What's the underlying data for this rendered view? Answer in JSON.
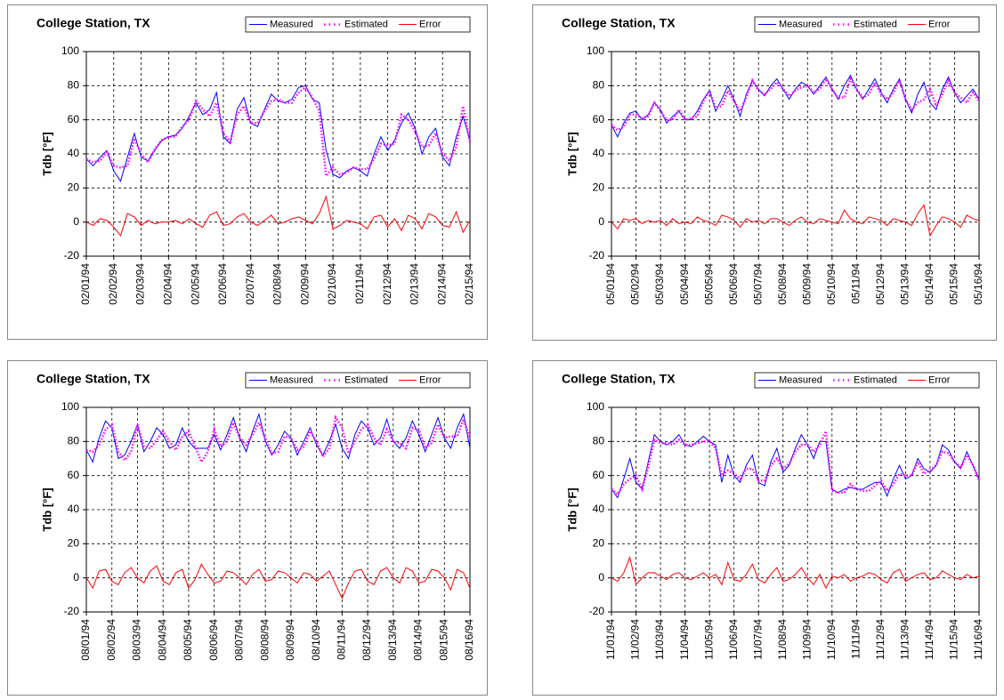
{
  "chart_data": [
    {
      "type": "line",
      "title": "College Station, TX",
      "y_label": "Tdb [°F]",
      "categories": [
        "02/01/94",
        null,
        null,
        null,
        "02/02/94",
        null,
        null,
        null,
        "02/03/94",
        null,
        null,
        null,
        "02/04/94",
        null,
        null,
        null,
        "02/05/94",
        null,
        null,
        null,
        "02/06/94",
        null,
        null,
        null,
        "02/07/94",
        null,
        null,
        null,
        "02/08/94",
        null,
        null,
        null,
        "02/09/94",
        null,
        null,
        null,
        "02/10/94",
        null,
        null,
        null,
        "02/11/94",
        null,
        null,
        null,
        "02/12/94",
        null,
        null,
        null,
        "02/13/94",
        null,
        null,
        null,
        "02/14/94",
        null,
        null,
        null,
        "02/15/94"
      ],
      "series": [
        {
          "name": "Measured",
          "color": "#0000ff",
          "values": [
            37,
            33,
            38,
            42,
            30,
            24,
            38,
            52,
            38,
            36,
            42,
            48,
            50,
            51,
            55,
            62,
            70,
            63,
            66,
            76,
            50,
            46,
            66,
            73,
            58,
            56,
            66,
            75,
            71,
            70,
            72,
            79,
            80,
            72,
            70,
            42,
            28,
            26,
            30,
            32,
            30,
            27,
            40,
            50,
            42,
            48,
            58,
            64,
            55,
            40,
            50,
            55,
            38,
            33,
            50,
            62,
            48
          ]
        },
        {
          "name": "Estimated",
          "color": "#ff00ff",
          "style": "dotted",
          "values": [
            37,
            35,
            36,
            41,
            33,
            32,
            33,
            49,
            40,
            35,
            43,
            48,
            50,
            50,
            56,
            60,
            71,
            66,
            62,
            70,
            52,
            47,
            63,
            68,
            58,
            58,
            65,
            71,
            72,
            70,
            70,
            76,
            79,
            73,
            65,
            27,
            32,
            28,
            29,
            32,
            31,
            31,
            37,
            46,
            45,
            46,
            63,
            60,
            53,
            44,
            45,
            52,
            40,
            36,
            44,
            68,
            47
          ]
        },
        {
          "name": "Error",
          "color": "#ff0000",
          "values": [
            0,
            -2,
            2,
            1,
            -3,
            -8,
            5,
            3,
            -2,
            1,
            -1,
            0,
            0,
            1,
            -1,
            2,
            -1,
            -3,
            4,
            6,
            -2,
            -1,
            3,
            5,
            0,
            -2,
            1,
            4,
            -1,
            0,
            2,
            3,
            1,
            -1,
            5,
            15,
            -4,
            -2,
            1,
            0,
            -1,
            -4,
            3,
            4,
            -3,
            2,
            -5,
            4,
            2,
            -4,
            5,
            3,
            -2,
            -3,
            6,
            -6,
            1
          ]
        }
      ],
      "ylim": [
        -20,
        100
      ],
      "yticks": [
        -20,
        0,
        20,
        40,
        60,
        80,
        100
      ],
      "grid": true,
      "legend_position": "upper right"
    },
    {
      "type": "line",
      "title": "College Station, TX",
      "y_label": "Tdb [°F]",
      "categories": [
        "05/01/94",
        null,
        null,
        null,
        "05/02/94",
        null,
        null,
        null,
        "05/03/94",
        null,
        null,
        null,
        "05/04/94",
        null,
        null,
        null,
        "05/05/94",
        null,
        null,
        null,
        "05/06/94",
        null,
        null,
        null,
        "05/07/94",
        null,
        null,
        null,
        "05/08/94",
        null,
        null,
        null,
        "05/09/94",
        null,
        null,
        null,
        "05/10/94",
        null,
        null,
        null,
        "05/11/94",
        null,
        null,
        null,
        "05/12/94",
        null,
        null,
        null,
        "05/13/94",
        null,
        null,
        null,
        "05/14/94",
        null,
        null,
        null,
        "05/15/94",
        null,
        null,
        null,
        "05/16/94"
      ],
      "series": [
        {
          "name": "Measured",
          "color": "#0000ff",
          "values": [
            57,
            50,
            58,
            64,
            65,
            60,
            63,
            70,
            66,
            58,
            62,
            65,
            60,
            60,
            65,
            72,
            77,
            65,
            72,
            80,
            72,
            62,
            75,
            83,
            78,
            74,
            80,
            84,
            78,
            72,
            78,
            82,
            80,
            75,
            80,
            85,
            78,
            72,
            80,
            86,
            78,
            72,
            78,
            84,
            76,
            70,
            78,
            84,
            72,
            64,
            75,
            82,
            70,
            66,
            78,
            85,
            76,
            70,
            74,
            78,
            72
          ]
        },
        {
          "name": "Estimated",
          "color": "#ff00ff",
          "style": "dotted",
          "values": [
            57,
            54,
            56,
            63,
            63,
            61,
            62,
            70,
            65,
            60,
            60,
            66,
            60,
            61,
            62,
            71,
            77,
            67,
            68,
            77,
            71,
            65,
            73,
            83,
            77,
            75,
            78,
            82,
            78,
            74,
            77,
            79,
            80,
            76,
            78,
            84,
            78,
            73,
            73,
            84,
            78,
            73,
            75,
            82,
            75,
            72,
            76,
            83,
            72,
            66,
            70,
            72,
            78,
            68,
            75,
            83,
            76,
            73,
            70,
            76,
            71
          ]
        },
        {
          "name": "Error",
          "color": "#ff0000",
          "values": [
            0,
            -4,
            2,
            1,
            2,
            -1,
            1,
            0,
            1,
            -2,
            2,
            -1,
            0,
            -1,
            3,
            1,
            0,
            -2,
            4,
            3,
            1,
            -3,
            2,
            0,
            1,
            -1,
            2,
            2,
            0,
            -2,
            1,
            3,
            0,
            -1,
            2,
            1,
            0,
            -1,
            7,
            2,
            0,
            -1,
            3,
            2,
            1,
            -2,
            2,
            1,
            0,
            -2,
            5,
            10,
            -8,
            -2,
            3,
            2,
            0,
            -3,
            4,
            2,
            1
          ]
        }
      ],
      "ylim": [
        -20,
        100
      ],
      "yticks": [
        -20,
        0,
        20,
        40,
        60,
        80,
        100
      ],
      "grid": true,
      "legend_position": "upper right"
    },
    {
      "type": "line",
      "title": "College Station, TX",
      "y_label": "Tdb [°F]",
      "categories": [
        "08/01/94",
        null,
        null,
        null,
        "08/02/94",
        null,
        null,
        null,
        "08/03/94",
        null,
        null,
        null,
        "08/04/94",
        null,
        null,
        null,
        "08/05/94",
        null,
        null,
        null,
        "08/06/94",
        null,
        null,
        null,
        "08/07/94",
        null,
        null,
        null,
        "08/08/94",
        null,
        null,
        null,
        "08/09/94",
        null,
        null,
        null,
        "08/10/94",
        null,
        null,
        null,
        "08/11/94",
        null,
        null,
        null,
        "08/12/94",
        null,
        null,
        null,
        "08/13/94",
        null,
        null,
        null,
        "08/14/94",
        null,
        null,
        null,
        "08/15/94",
        null,
        null,
        null,
        "08/16/94"
      ],
      "series": [
        {
          "name": "Measured",
          "color": "#0000ff",
          "values": [
            75,
            68,
            82,
            92,
            88,
            70,
            72,
            80,
            90,
            74,
            80,
            88,
            84,
            76,
            78,
            88,
            80,
            76,
            76,
            76,
            84,
            75,
            84,
            94,
            82,
            74,
            86,
            96,
            80,
            72,
            78,
            86,
            82,
            72,
            80,
            88,
            78,
            72,
            80,
            90,
            76,
            70,
            84,
            92,
            88,
            78,
            82,
            93,
            80,
            76,
            82,
            92,
            84,
            74,
            84,
            94,
            82,
            76,
            88,
            96,
            76
          ]
        },
        {
          "name": "Estimated",
          "color": "#ff00ff",
          "style": "dotted",
          "values": [
            75,
            74,
            78,
            87,
            90,
            74,
            69,
            74,
            90,
            77,
            76,
            81,
            86,
            80,
            75,
            83,
            86,
            77,
            68,
            74,
            87,
            77,
            80,
            91,
            82,
            78,
            84,
            91,
            82,
            73,
            74,
            83,
            82,
            75,
            77,
            86,
            80,
            71,
            76,
            94,
            88,
            73,
            80,
            87,
            90,
            82,
            78,
            87,
            80,
            79,
            76,
            88,
            87,
            76,
            79,
            90,
            82,
            83,
            83,
            93,
            82
          ]
        },
        {
          "name": "Error",
          "color": "#ff0000",
          "values": [
            0,
            -6,
            4,
            5,
            -2,
            -4,
            3,
            6,
            0,
            -3,
            4,
            7,
            -2,
            -4,
            3,
            5,
            -6,
            -1,
            8,
            2,
            -3,
            -2,
            4,
            3,
            0,
            -4,
            2,
            5,
            -2,
            -1,
            4,
            3,
            0,
            -3,
            3,
            2,
            -2,
            1,
            4,
            -4,
            -12,
            -3,
            4,
            5,
            -2,
            -4,
            4,
            6,
            0,
            -3,
            6,
            4,
            -3,
            -2,
            5,
            4,
            0,
            -7,
            5,
            3,
            -6
          ]
        }
      ],
      "ylim": [
        -20,
        100
      ],
      "yticks": [
        -20,
        0,
        20,
        40,
        60,
        80,
        100
      ],
      "grid": true,
      "legend_position": "upper right"
    },
    {
      "type": "line",
      "title": "College Station, TX",
      "y_label": "Tdb [°F]",
      "categories": [
        "11/01/94",
        null,
        null,
        null,
        "11/02/94",
        null,
        null,
        null,
        "11/03/94",
        null,
        null,
        null,
        "11/04/94",
        null,
        null,
        null,
        "11/05/94",
        null,
        null,
        null,
        "11/06/94",
        null,
        null,
        null,
        "11/07/94",
        null,
        null,
        null,
        "11/08/94",
        null,
        null,
        null,
        "11/09/94",
        null,
        null,
        null,
        "11/10/94",
        null,
        null,
        null,
        "11/11/94",
        null,
        null,
        null,
        "11/12/94",
        null,
        null,
        null,
        "11/13/94",
        null,
        null,
        null,
        "11/14/94",
        null,
        null,
        null,
        "11/15/94",
        null,
        null,
        null,
        "11/16/94"
      ],
      "series": [
        {
          "name": "Measured",
          "color": "#0000ff",
          "values": [
            52,
            47,
            58,
            70,
            56,
            52,
            68,
            84,
            80,
            78,
            80,
            84,
            78,
            77,
            80,
            83,
            80,
            78,
            56,
            72,
            60,
            56,
            66,
            72,
            56,
            54,
            68,
            76,
            62,
            66,
            76,
            84,
            78,
            70,
            80,
            80,
            52,
            50,
            52,
            53,
            52,
            52,
            54,
            56,
            56,
            48,
            58,
            66,
            58,
            60,
            70,
            64,
            62,
            66,
            78,
            75,
            68,
            64,
            74,
            66,
            58
          ]
        },
        {
          "name": "Estimated",
          "color": "#ff00ff",
          "style": "dotted",
          "values": [
            52,
            49,
            55,
            58,
            60,
            52,
            65,
            81,
            79,
            79,
            78,
            81,
            78,
            78,
            79,
            80,
            80,
            76,
            60,
            63,
            61,
            58,
            64,
            64,
            57,
            57,
            66,
            70,
            64,
            67,
            74,
            78,
            78,
            74,
            78,
            86,
            51,
            50,
            50,
            55,
            52,
            51,
            51,
            54,
            57,
            51,
            55,
            61,
            60,
            60,
            68,
            61,
            63,
            66,
            74,
            73,
            68,
            65,
            72,
            66,
            57
          ]
        },
        {
          "name": "Error",
          "color": "#ff0000",
          "values": [
            0,
            -2,
            3,
            12,
            -4,
            0,
            3,
            3,
            1,
            -1,
            2,
            3,
            0,
            -1,
            1,
            3,
            0,
            2,
            -4,
            9,
            -1,
            -2,
            2,
            8,
            -1,
            -3,
            2,
            6,
            -2,
            -1,
            2,
            6,
            0,
            -4,
            2,
            -6,
            1,
            0,
            2,
            -2,
            0,
            1,
            3,
            2,
            -1,
            -3,
            3,
            5,
            -2,
            0,
            2,
            3,
            -1,
            0,
            4,
            2,
            0,
            -1,
            2,
            0,
            1
          ]
        }
      ],
      "ylim": [
        -20,
        100
      ],
      "yticks": [
        -20,
        0,
        20,
        40,
        60,
        80,
        100
      ],
      "grid": true,
      "legend_position": "upper right"
    }
  ]
}
